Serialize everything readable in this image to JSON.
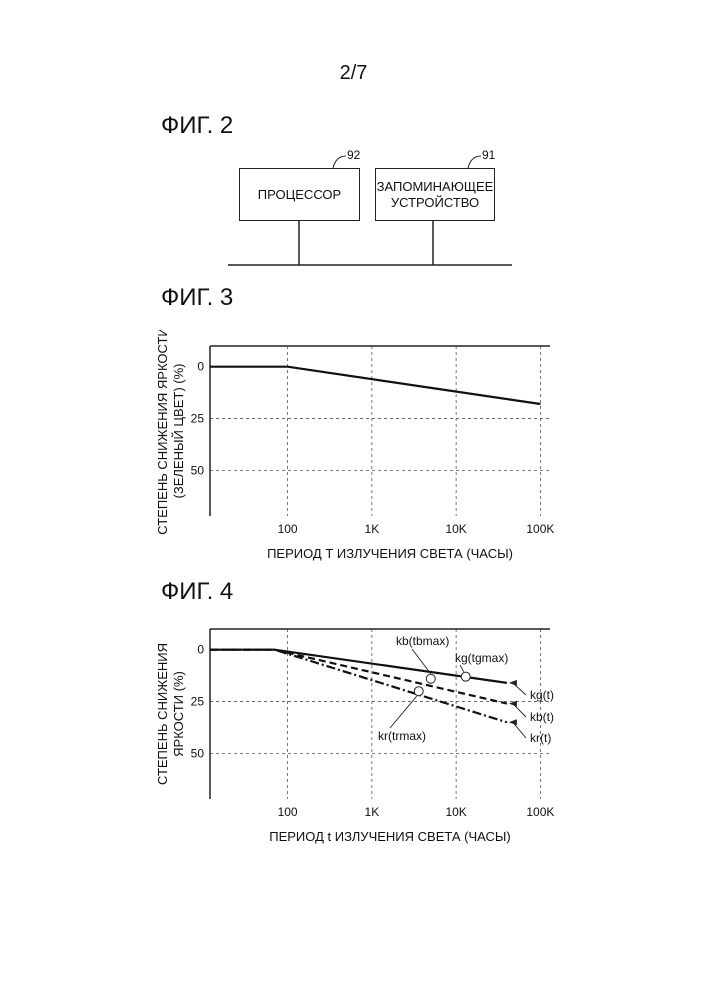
{
  "page_number": "2/7",
  "fig2": {
    "title": "ФИГ. 2",
    "processor_label": "ПРОЦЕССОР",
    "processor_ref": "92",
    "storage_label_line1": "ЗАПОМИНАЮЩЕЕ",
    "storage_label_line2": "УСТРОЙСТВО",
    "storage_ref": "91"
  },
  "fig3": {
    "title": "ФИГ. 3"
  },
  "fig4": {
    "title": "ФИГ. 4"
  },
  "chart_data": [
    {
      "type": "line",
      "xscale": "log",
      "x_tick_labels": [
        "100",
        "1K",
        "10K",
        "100K"
      ],
      "x_tick_values": [
        100,
        1000,
        10000,
        100000
      ],
      "y_tick_labels": [
        "0",
        "25",
        "50"
      ],
      "y_tick_values": [
        0,
        25,
        50
      ],
      "ylim": [
        -10,
        72
      ],
      "y_inverted": true,
      "xlim": [
        12,
        130000
      ],
      "grid": true,
      "xlabel": "ПЕРИОД Т ИЗЛУЧЕНИЯ СВЕТА (ЧАСЫ)",
      "ylabel_line1": "СТЕПЕНЬ СНИЖЕНИЯ ЯРКОСТИ",
      "ylabel_line2": "(ЗЕЛЕНЫЙ ЦВЕТ) (%)",
      "series": [
        {
          "x": [
            12,
            100,
            100000
          ],
          "y": [
            0,
            0,
            18
          ],
          "style": "solid"
        }
      ]
    },
    {
      "type": "line",
      "xscale": "log",
      "x_tick_labels": [
        "100",
        "1K",
        "10K",
        "100K"
      ],
      "x_tick_values": [
        100,
        1000,
        10000,
        100000
      ],
      "y_tick_labels": [
        "0",
        "25",
        "50"
      ],
      "y_tick_values": [
        0,
        25,
        50
      ],
      "ylim": [
        -10,
        72
      ],
      "y_inverted": true,
      "xlim": [
        12,
        130000
      ],
      "grid": true,
      "xlabel": "ПЕРИОД t ИЗЛУЧЕНИЯ СВЕТА (ЧАСЫ)",
      "ylabel_line1": "СТЕПЕНЬ СНИЖЕНИЯ",
      "ylabel_line2": "ЯРКОСТИ (%)",
      "series": [
        {
          "name": "kg(t)",
          "x": [
            12,
            70,
            40000
          ],
          "y": [
            0,
            0,
            16
          ],
          "style": "solid"
        },
        {
          "name": "kb(t)",
          "x": [
            12,
            70,
            40000
          ],
          "y": [
            0,
            0,
            26
          ],
          "style": "dashed"
        },
        {
          "name": "kr(t)",
          "x": [
            12,
            70,
            40000
          ],
          "y": [
            0,
            0,
            35
          ],
          "style": "dashdot"
        }
      ],
      "annotations": [
        {
          "label": "kb(tbmax)",
          "x": 5000,
          "y": 14
        },
        {
          "label": "kg(tgmax)",
          "x": 13000,
          "y": 13
        },
        {
          "label": "kr(trmax)",
          "x": 3600,
          "y": 20
        }
      ]
    }
  ]
}
